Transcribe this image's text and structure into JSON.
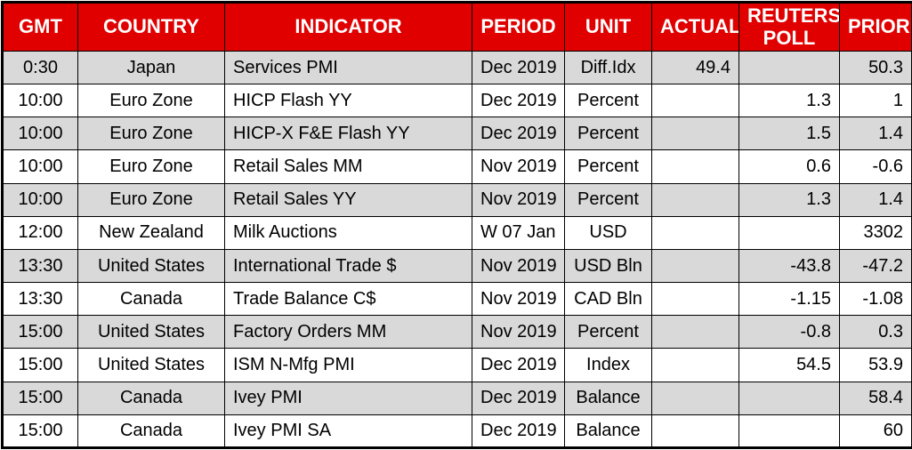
{
  "chart_data": {
    "type": "table",
    "columns": [
      {
        "key": "gmt",
        "label": "GMT"
      },
      {
        "key": "country",
        "label": "COUNTRY"
      },
      {
        "key": "indicator",
        "label": "INDICATOR"
      },
      {
        "key": "period",
        "label": "PERIOD"
      },
      {
        "key": "unit",
        "label": "UNIT"
      },
      {
        "key": "actual",
        "label": "ACTUAL"
      },
      {
        "key": "reuters_poll",
        "label": "REUTERS POLL"
      },
      {
        "key": "prior",
        "label": "PRIOR"
      }
    ],
    "rows": [
      [
        "0:30",
        "Japan",
        "Services PMI",
        "Dec 2019",
        "Diff.Idx",
        "49.4",
        "",
        "50.3"
      ],
      [
        "10:00",
        "Euro Zone",
        "HICP Flash YY",
        "Dec 2019",
        "Percent",
        "",
        "1.3",
        "1"
      ],
      [
        "10:00",
        "Euro Zone",
        "HICP-X F&E Flash YY",
        "Dec 2019",
        "Percent",
        "",
        "1.5",
        "1.4"
      ],
      [
        "10:00",
        "Euro Zone",
        "Retail Sales MM",
        "Nov 2019",
        "Percent",
        "",
        "0.6",
        "-0.6"
      ],
      [
        "10:00",
        "Euro Zone",
        "Retail Sales YY",
        "Nov 2019",
        "Percent",
        "",
        "1.3",
        "1.4"
      ],
      [
        "12:00",
        "New Zealand",
        "Milk Auctions",
        "W 07 Jan",
        "USD",
        "",
        "",
        "3302"
      ],
      [
        "13:30",
        "United States",
        "International Trade $",
        "Nov 2019",
        "USD Bln",
        "",
        "-43.8",
        "-47.2"
      ],
      [
        "13:30",
        "Canada",
        "Trade Balance C$",
        "Nov 2019",
        "CAD Bln",
        "",
        "-1.15",
        "-1.08"
      ],
      [
        "15:00",
        "United States",
        "Factory Orders MM",
        "Nov 2019",
        "Percent",
        "",
        "-0.8",
        "0.3"
      ],
      [
        "15:00",
        "United States",
        "ISM N-Mfg PMI",
        "Dec 2019",
        "Index",
        "",
        "54.5",
        "53.9"
      ],
      [
        "15:00",
        "Canada",
        "Ivey PMI",
        "Dec 2019",
        "Balance",
        "",
        "",
        "58.4"
      ],
      [
        "15:00",
        "Canada",
        "Ivey PMI SA",
        "Dec 2019",
        "Balance",
        "",
        "",
        "60"
      ]
    ]
  },
  "colors": {
    "header_bg": "#E00000",
    "header_text": "#FFFFFF",
    "row_bg": "#FFFFFF",
    "row_alt_bg": "#D9D9D9",
    "border": "#000000"
  }
}
